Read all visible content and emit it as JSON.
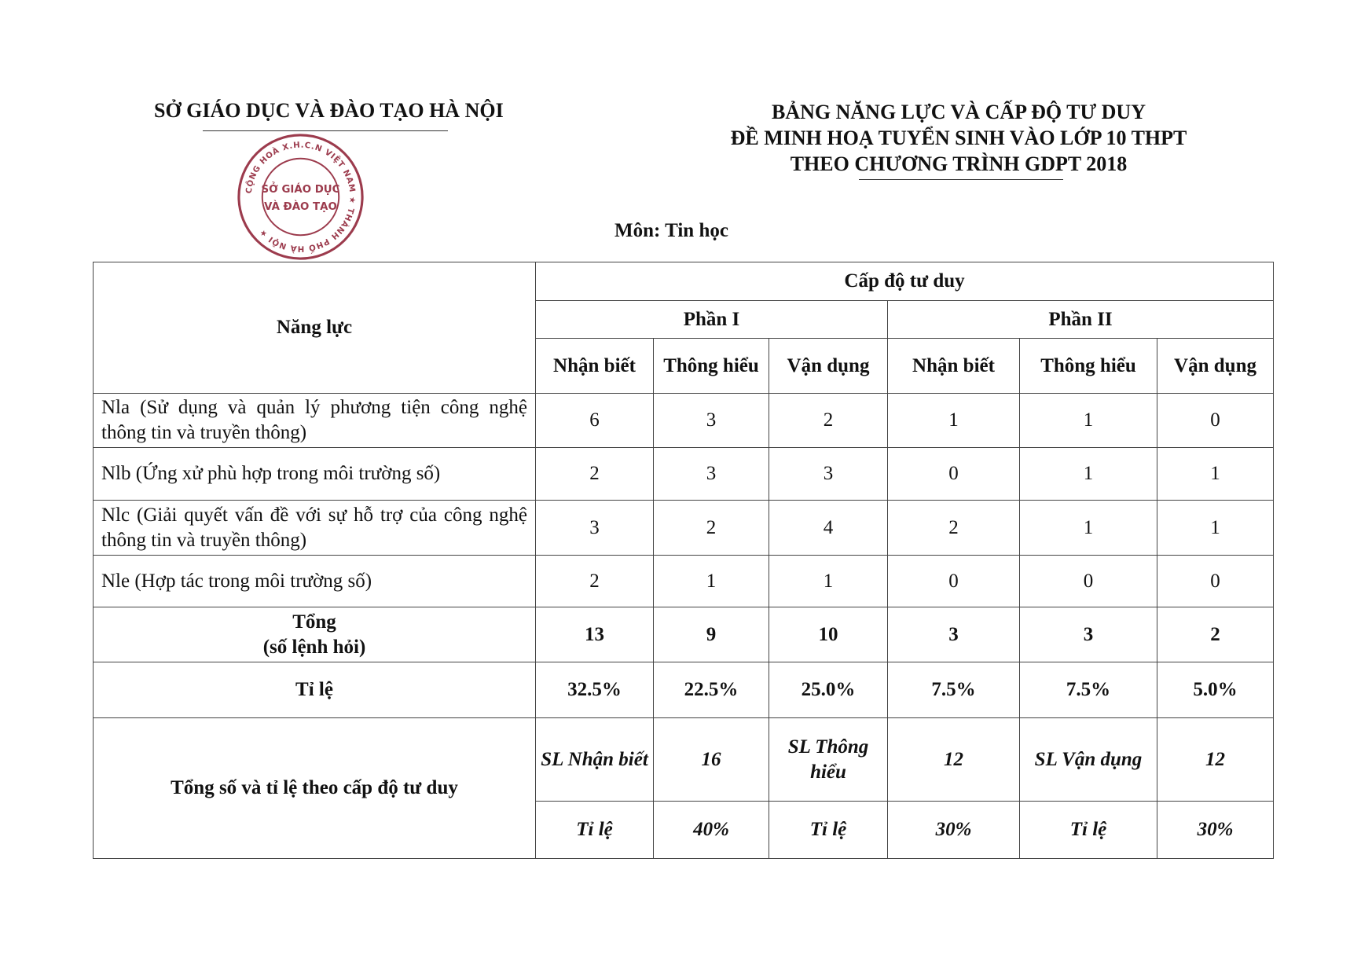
{
  "header": {
    "org": "SỞ GIÁO DỤC VÀ ĐÀO TẠO HÀ NỘI",
    "title_lines": [
      "BẢNG NĂNG LỰC VÀ CẤP ĐỘ TƯ DUY",
      "ĐỀ MINH HOẠ TUYỂN SINH VÀO LỚP 10 THPT",
      "THEO CHƯƠNG TRÌNH GDPT 2018"
    ],
    "subject": "Môn: Tin học"
  },
  "stamp": {
    "outer_text": "CỘNG HOÀ X.H.C.N VIỆT NAM * THÀNH PHỐ HÀ NỘI *",
    "inner_lines": [
      "SỞ GIÁO DỤC",
      "VÀ ĐÀO TẠO"
    ],
    "color": "#8b1a2e"
  },
  "table": {
    "col_nangluc": "Năng lực",
    "cap_do": "Cấp độ tư duy",
    "phan1": "Phần I",
    "phan2": "Phần II",
    "levels": [
      "Nhận biết",
      "Thông hiểu",
      "Vận dụng",
      "Nhận biết",
      "Thông hiểu",
      "Vận dụng"
    ],
    "rows": [
      {
        "label": "Nla (Sử dụng và quản lý phương tiện công nghệ thông tin và truyền thông)",
        "values": [
          "6",
          "3",
          "2",
          "1",
          "1",
          "0"
        ]
      },
      {
        "label": "Nlb (Ứng xử phù hợp trong môi trường số)",
        "values": [
          "2",
          "3",
          "3",
          "0",
          "1",
          "1"
        ]
      },
      {
        "label": "Nlc (Giải quyết vấn đề với sự hỗ trợ của công nghệ thông tin và truyền thông)",
        "values": [
          "3",
          "2",
          "4",
          "2",
          "1",
          "1"
        ]
      },
      {
        "label": "Nle (Hợp tác trong môi trường số)",
        "values": [
          "2",
          "1",
          "1",
          "0",
          "0",
          "0"
        ]
      }
    ],
    "total": {
      "label_line1": "Tổng",
      "label_line2": "(số lệnh hỏi)",
      "values": [
        "13",
        "9",
        "10",
        "3",
        "3",
        "2"
      ]
    },
    "ratio": {
      "label": "Tỉ lệ",
      "values": [
        "32.5%",
        "22.5%",
        "25.0%",
        "7.5%",
        "7.5%",
        "5.0%"
      ]
    },
    "summary": {
      "label": "Tổng số và tỉ lệ theo cấp độ tư duy",
      "sl": [
        {
          "label": "SL Nhận biết",
          "value": "16"
        },
        {
          "label": "SL Thông hiểu",
          "value": "12"
        },
        {
          "label": "SL Vận dụng",
          "value": "12"
        }
      ],
      "ratio_label": "Tỉ lệ",
      "ratios": [
        "40%",
        "30%",
        "30%"
      ]
    }
  }
}
